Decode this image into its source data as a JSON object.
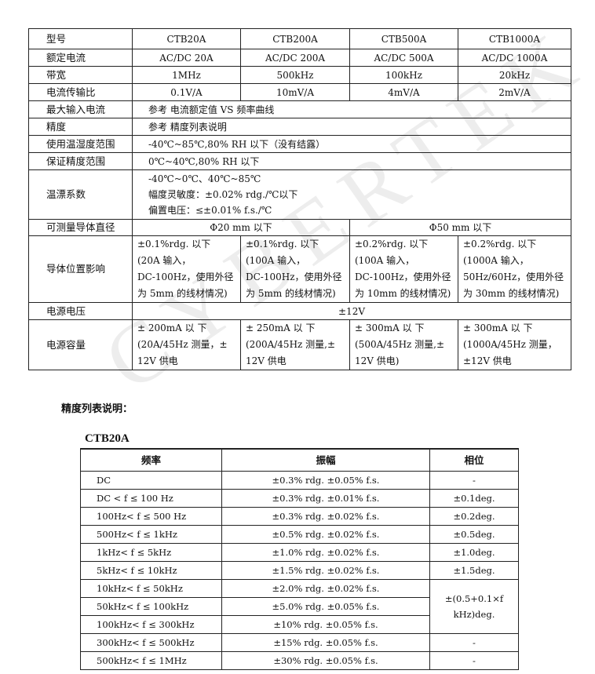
{
  "spec_table": {
    "header": [
      "型号",
      "CTB20A",
      "CTB200A",
      "CTB500A",
      "CTB1000A"
    ],
    "rows_simple": [
      [
        "额定电流",
        "AC/DC 20A",
        "AC/DC 200A",
        "AC/DC 500A",
        "AC/DC 1000A"
      ],
      [
        "带宽",
        "1MHz",
        "500kHz",
        "100kHz",
        "20kHz"
      ],
      [
        "电流传输比",
        "0.1V/A",
        "10mV/A",
        "4mV/A",
        "2mV/A"
      ]
    ],
    "rows_span": [
      [
        "最大输入电流",
        "参考 电流额定值 VS 频率曲线"
      ],
      [
        "精度",
        "参考 精度列表说明"
      ],
      [
        "使用温湿度范围",
        "-40℃~85℃,80% RH 以下（没有结露）"
      ],
      [
        "保证精度范围",
        "0℃~40℃,80% RH 以下"
      ]
    ],
    "temp_coeff": {
      "label": "温漂系数",
      "lines": [
        "-40℃~0℃、40℃~85℃",
        "幅度灵敏度：±0.02% rdg./℃以下",
        "偏置电压：≤±0.01% f.s./℃"
      ]
    },
    "diameter": {
      "label": "可测量导体直径",
      "small": "Φ20 mm 以下",
      "large": "Φ50 mm 以下"
    },
    "position_effect": {
      "label": "导体位置影响",
      "cells": [
        [
          "±0.1%rdg. 以下",
          "(20A 输入，",
          "DC-100Hz，使用外径",
          "为 5mm 的线材情况)"
        ],
        [
          "±0.1%rdg. 以下",
          "(100A 输入，",
          "DC-100Hz，使用外径",
          "为 5mm 的线材情况)"
        ],
        [
          "±0.2%rdg. 以下",
          "(100A 输入，",
          "DC-100Hz，使用外径",
          "为 10mm 的线材情况)"
        ],
        [
          "±0.2%rdg. 以下",
          "(1000A 输入，",
          "50Hz/60Hz，使用外径",
          "为 30mm 的线材情况)"
        ]
      ]
    },
    "supply_voltage": {
      "label": "电源电压",
      "value": "±12V"
    },
    "supply_capacity": {
      "label": "电源容量",
      "cells": [
        [
          "± 200mA 以 下",
          "(20A/45Hz 测量，±",
          "12V 供电"
        ],
        [
          "± 250mA 以 下",
          "(200A/45Hz 测量,±",
          "12V 供电"
        ],
        [
          "± 300mA 以 下",
          "(500A/45Hz 测量,±",
          "12V 供电)"
        ],
        [
          "± 300mA 以 下",
          "(1000A/45Hz 测量，",
          "±12V 供电"
        ]
      ]
    }
  },
  "accuracy_heading": "精度列表说明：",
  "model_title": "CTB20A",
  "accuracy_table": {
    "header": [
      "频率",
      "振幅",
      "相位"
    ],
    "rows": [
      [
        "DC",
        "±0.3% rdg. ±0.05% f.s.",
        "-"
      ],
      [
        "DC < f ≤ 100 Hz",
        "±0.3% rdg. ±0.01% f.s.",
        "±0.1deg."
      ],
      [
        "100Hz< f ≤ 500 Hz",
        "±0.3% rdg. ±0.02% f.s.",
        "±0.2deg."
      ],
      [
        "500Hz< f ≤ 1kHz",
        "±0.5% rdg. ±0.02% f.s.",
        "±0.5deg."
      ],
      [
        "1kHz< f ≤ 5kHz",
        "±1.0% rdg. ±0.02% f.s.",
        "±1.0deg."
      ],
      [
        "5kHz< f ≤ 10kHz",
        "±1.5% rdg. ±0.02% f.s.",
        "±1.5deg."
      ],
      [
        "10kHz< f ≤ 50kHz",
        "±2.0% rdg. ±0.02% f.s.",
        ""
      ],
      [
        "50kHz< f ≤ 100kHz",
        "±5.0% rdg. ±0.05% f.s.",
        ""
      ],
      [
        "100kHz< f ≤ 300kHz",
        "±10% rdg. ±0.05% f.s.",
        ""
      ],
      [
        "300kHz< f ≤ 500kHz",
        "±15% rdg. ±0.05% f.s.",
        "-"
      ],
      [
        "500kHz< f ≤ 1MHz",
        "±30% rdg. ±0.05% f.s.",
        "-"
      ]
    ],
    "merged_phase": "±(0.5+0.1×f kHz)deg."
  },
  "watermark": "CYBERTEK"
}
